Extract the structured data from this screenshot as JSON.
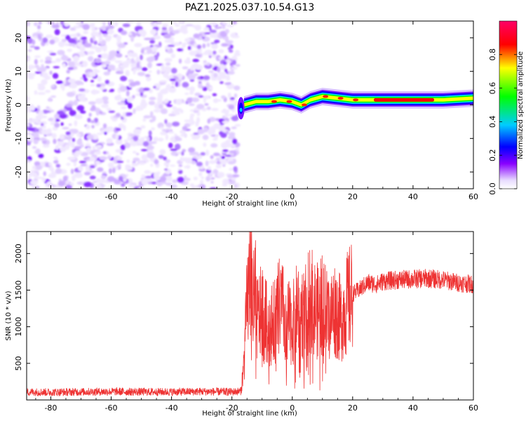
{
  "title": "PAZ1.2025.037.10.54.G13",
  "chart_data": [
    {
      "type": "heatmap",
      "xlabel": "Height of straight line (km)",
      "ylabel": "Frequency (Hz)",
      "xlim": [
        -88,
        60
      ],
      "ylim": [
        -25,
        25
      ],
      "x_ticks": [
        -80,
        -60,
        -40,
        -20,
        0,
        20,
        40,
        60
      ],
      "y_ticks": [
        -20,
        -10,
        0,
        10,
        20
      ],
      "colorbar": {
        "label": "Normalized spectral amplitude",
        "range": [
          0,
          1
        ],
        "ticks": [
          "0.0",
          "0.2",
          "0.4",
          "0.6",
          "0.8"
        ],
        "colormap": [
          "#ffffff",
          "#8800ff",
          "#0000ff",
          "#00ccff",
          "#00ff00",
          "#ffff00",
          "#ff0000",
          "#ff0066"
        ]
      },
      "noise_region": {
        "x": [
          -88,
          -18
        ],
        "y": [
          -25,
          25
        ]
      },
      "signal_ridge": [
        {
          "x": -16,
          "freq": 0
        },
        {
          "x": -12,
          "freq": 1
        },
        {
          "x": -8,
          "freq": 1
        },
        {
          "x": -4,
          "freq": 1.5
        },
        {
          "x": 0,
          "freq": 1
        },
        {
          "x": 3,
          "freq": 0
        },
        {
          "x": 6,
          "freq": 1.5
        },
        {
          "x": 10,
          "freq": 2.5
        },
        {
          "x": 15,
          "freq": 2
        },
        {
          "x": 20,
          "freq": 1.5
        },
        {
          "x": 30,
          "freq": 1.5
        },
        {
          "x": 40,
          "freq": 1.5
        },
        {
          "x": 50,
          "freq": 1.5
        },
        {
          "x": 60,
          "freq": 2
        }
      ]
    },
    {
      "type": "line",
      "xlabel": "Height of straight line (km)",
      "ylabel": "SNR (10 * v/v)",
      "xlim": [
        -88,
        60
      ],
      "ylim": [
        0,
        2300
      ],
      "x_ticks": [
        -80,
        -60,
        -40,
        -20,
        0,
        20,
        40,
        60
      ],
      "y_ticks": [
        500,
        1000,
        1500,
        2000
      ],
      "color": "#ee3333",
      "series": [
        {
          "x": [
            -88,
            -80,
            -70,
            -60,
            -50,
            -40,
            -30,
            -20,
            -17,
            -16,
            -15,
            -14,
            -13,
            -12,
            -10,
            -8,
            -6,
            -4,
            -2,
            0,
            2,
            4,
            6,
            8,
            10,
            12,
            14,
            16,
            18,
            20,
            22,
            25,
            28,
            30,
            35,
            40,
            45,
            50,
            55,
            60
          ],
          "values": [
            110,
            105,
            110,
            115,
            110,
            110,
            115,
            110,
            120,
            500,
            1300,
            1700,
            1400,
            1100,
            1200,
            1000,
            1050,
            1300,
            1100,
            1000,
            1300,
            1150,
            1400,
            1200,
            1300,
            1100,
            1250,
            1100,
            1300,
            1450,
            1500,
            1600,
            1580,
            1620,
            1640,
            1650,
            1660,
            1640,
            1600,
            1580
          ]
        }
      ]
    }
  ]
}
